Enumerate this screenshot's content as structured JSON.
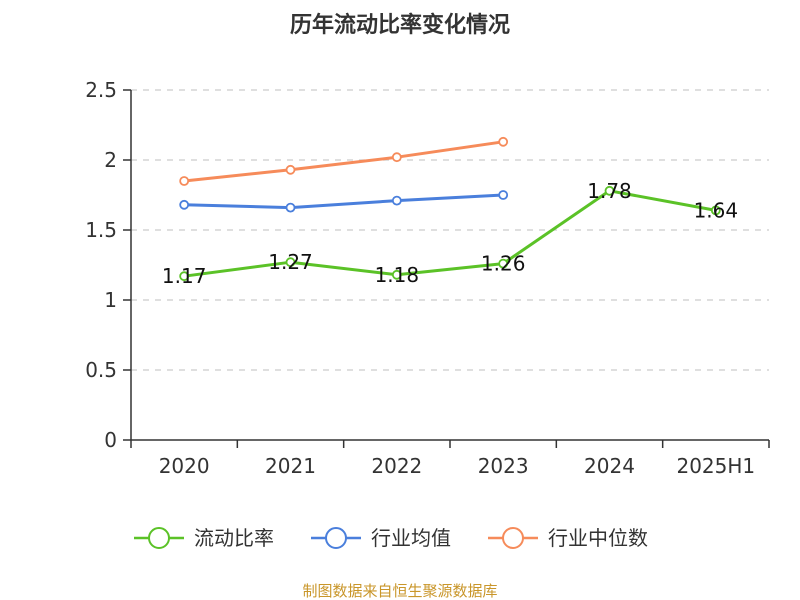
{
  "chart_data": {
    "type": "line",
    "title": "历年流动比率变化情况",
    "categories": [
      "2020",
      "2021",
      "2022",
      "2023",
      "2024",
      "2025H1"
    ],
    "ylim": [
      0,
      2.5
    ],
    "yticks": [
      "0",
      "0.5",
      "1",
      "1.5",
      "2",
      "2.5"
    ],
    "grid": true,
    "legend_position": "bottom",
    "series": [
      {
        "name": "流动比率",
        "color": "#5bc227",
        "values": [
          1.17,
          1.27,
          1.18,
          1.26,
          1.78,
          1.64
        ],
        "data_labels": [
          "1.17",
          "1.27",
          "1.18",
          "1.26",
          "1.78",
          "1.64"
        ]
      },
      {
        "name": "行业均值",
        "color": "#4a7fdc",
        "values": [
          1.68,
          1.66,
          1.71,
          1.75,
          null,
          null
        ]
      },
      {
        "name": "行业中位数",
        "color": "#f68b5a",
        "values": [
          1.85,
          1.93,
          2.02,
          2.13,
          null,
          null
        ]
      }
    ]
  },
  "source": "制图数据来自恒生聚源数据库"
}
